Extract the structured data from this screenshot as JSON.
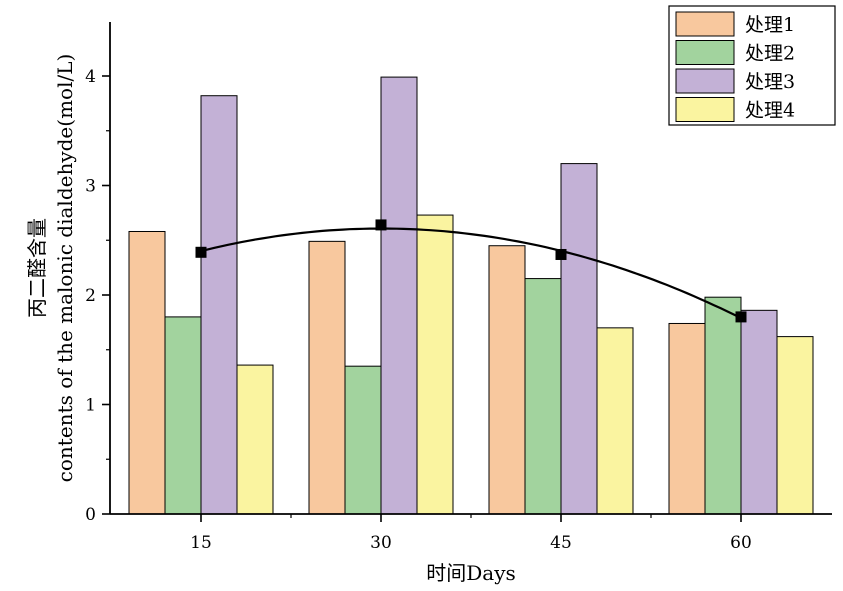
{
  "chart_data": {
    "type": "bar",
    "categories": [
      "15",
      "30",
      "45",
      "60"
    ],
    "series": [
      {
        "name": "处理1",
        "color": "#F8C89E",
        "values": [
          2.58,
          2.49,
          2.45,
          1.74
        ]
      },
      {
        "name": "处理2",
        "color": "#A2D39E",
        "values": [
          1.8,
          1.35,
          2.15,
          1.98
        ]
      },
      {
        "name": "处理3",
        "color": "#C3B1D6",
        "values": [
          3.82,
          3.99,
          3.2,
          1.86
        ]
      },
      {
        "name": "处理4",
        "color": "#FAF4A0",
        "values": [
          1.36,
          2.73,
          1.7,
          1.62
        ]
      }
    ],
    "mean_markers": {
      "values": [
        2.39,
        2.64,
        2.37,
        1.8
      ],
      "color": "#000000"
    },
    "trend_curve": {
      "type": "quadratic-fit",
      "x_range": [
        15,
        60
      ],
      "color": "#000000"
    },
    "xlabel": "时间Days",
    "ylabel": "丙二醛含量 contents of the malonic dialdehyde(mol/L)",
    "ylabel_line1": "丙二醛含量",
    "ylabel_line2": "contents of the malonic dialdehyde(mol/L)",
    "yticks": [
      0,
      1,
      2,
      3,
      4
    ],
    "ylim": [
      0,
      4.5
    ],
    "legend_position": "top-right",
    "grid": false
  }
}
